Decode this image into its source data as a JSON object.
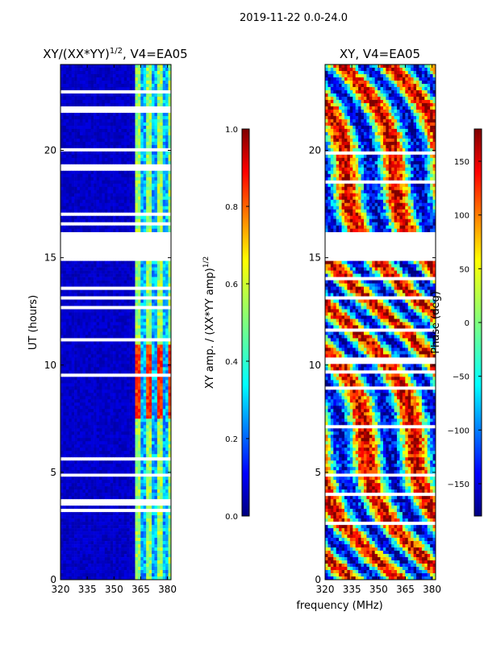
{
  "figure_title": "2019-11-22 0.0-24.0",
  "common_xlabel": "frequency (MHz)",
  "colors": {
    "jet": [
      "#00007f",
      "#0000ff",
      "#007fff",
      "#00ffff",
      "#7fff7f",
      "#ffff00",
      "#ff7f00",
      "#ff0000",
      "#7f0000"
    ]
  },
  "chart_data": [
    {
      "type": "heatmap",
      "title": "XY/(XX*YY)",
      "title_sup": "1/2",
      "title_suffix": ", V4=EA05",
      "ylabel": "UT (hours)",
      "xlim": [
        320,
        382
      ],
      "ylim": [
        0,
        24
      ],
      "xticks": [
        320,
        335,
        350,
        365,
        380
      ],
      "xtick_labels": [
        "320",
        "335",
        "350",
        "365",
        "380"
      ],
      "yticks": [
        0,
        5,
        10,
        15,
        20
      ],
      "ytick_labels": [
        "0",
        "5",
        "10",
        "15",
        "20"
      ],
      "data_gaps_hours": [
        [
          14.8,
          16.2
        ],
        [
          4.75,
          4.95
        ]
      ],
      "colorbar": {
        "label": "XY amp. / (XX*YY amp)",
        "label_sup": "1/2",
        "range": [
          0.0,
          1.0
        ],
        "ticks": [
          0.0,
          0.2,
          0.4,
          0.6,
          0.8,
          1.0
        ],
        "tick_labels": [
          "0.0",
          "0.2",
          "0.4",
          "0.6",
          "0.8",
          "1.0"
        ]
      }
    },
    {
      "type": "heatmap",
      "title": "XY, V4=EA05",
      "ylabel": "",
      "xlim": [
        320,
        382
      ],
      "ylim": [
        0,
        24
      ],
      "xticks": [
        320,
        335,
        350,
        365,
        380
      ],
      "xtick_labels": [
        "320",
        "335",
        "350",
        "365",
        "380"
      ],
      "yticks": [
        0,
        5,
        10,
        15,
        20
      ],
      "ytick_labels": [
        "0",
        "5",
        "10",
        "15",
        "20"
      ],
      "data_gaps_hours": [
        [
          14.8,
          16.2
        ],
        [
          4.75,
          4.95
        ]
      ],
      "colorbar": {
        "label": "Phase (deg)",
        "range": [
          -180,
          180
        ],
        "ticks": [
          -150,
          -100,
          -50,
          0,
          50,
          100,
          150
        ],
        "tick_labels": [
          "−150",
          "−100",
          "−50",
          "0",
          "50",
          "100",
          "150"
        ]
      }
    }
  ]
}
